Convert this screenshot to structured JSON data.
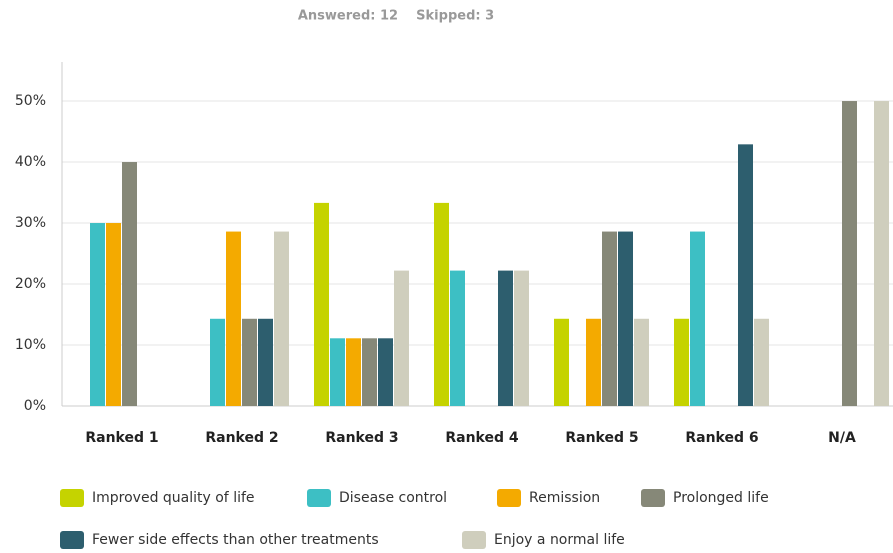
{
  "chart_data": {
    "type": "bar",
    "subtitle": "Answered: 12    Skipped: 3",
    "categories": [
      "Ranked 1",
      "Ranked 2",
      "Ranked 3",
      "Ranked 4",
      "Ranked 5",
      "Ranked 6",
      "N/A"
    ],
    "series": [
      {
        "name": "Improved quality of life",
        "color": "#c5d300",
        "values": [
          0,
          0,
          33.3,
          33.3,
          14.3,
          14.3,
          0
        ]
      },
      {
        "name": "Disease control",
        "color": "#3dbfc4",
        "values": [
          30,
          14.3,
          11.1,
          22.2,
          0,
          28.6,
          0
        ]
      },
      {
        "name": "Remission",
        "color": "#f4aa00",
        "values": [
          30,
          28.6,
          11.1,
          0,
          14.3,
          0,
          0
        ]
      },
      {
        "name": "Prolonged life",
        "color": "#868878",
        "values": [
          40,
          14.3,
          11.1,
          0,
          28.6,
          0,
          50
        ]
      },
      {
        "name": "Fewer side effects than other treatments",
        "color": "#2d5e6e",
        "values": [
          0,
          14.3,
          11.1,
          22.2,
          28.6,
          42.9,
          0
        ]
      },
      {
        "name": "Enjoy a normal life",
        "color": "#cfcebd",
        "values": [
          0,
          28.6,
          22.2,
          22.2,
          14.3,
          14.3,
          50
        ]
      }
    ],
    "ylim": [
      0,
      56.4
    ],
    "yticks": [
      {
        "value": 0,
        "label": "0%"
      },
      {
        "value": 10,
        "label": "10%"
      },
      {
        "value": 20,
        "label": "20%"
      },
      {
        "value": 30,
        "label": "30%"
      },
      {
        "value": 40,
        "label": "40%"
      },
      {
        "value": 50,
        "label": "50%"
      }
    ],
    "grid": true
  }
}
